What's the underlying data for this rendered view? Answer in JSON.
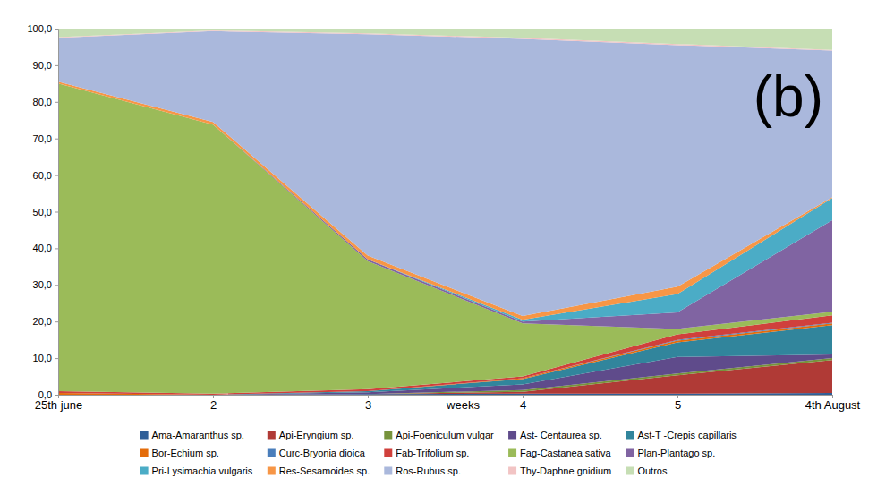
{
  "chart_data": {
    "type": "area",
    "stacked": true,
    "title": "(b)",
    "xlabel": "weeks",
    "legend": "bottom",
    "categories": [
      "25th june",
      "2",
      "3",
      "4",
      "5",
      "4th August"
    ],
    "ylim": [
      0,
      100
    ],
    "yticks": [
      {
        "value": 0,
        "label": "0,0"
      },
      {
        "value": 10,
        "label": "10,0"
      },
      {
        "value": 20,
        "label": "20,0"
      },
      {
        "value": 30,
        "label": "30,0"
      },
      {
        "value": 40,
        "label": "40,0"
      },
      {
        "value": 50,
        "label": "50,0"
      },
      {
        "value": 60,
        "label": "60,0"
      },
      {
        "value": 70,
        "label": "70,0"
      },
      {
        "value": 80,
        "label": "80,0"
      },
      {
        "value": 90,
        "label": "90,0"
      },
      {
        "value": 100,
        "label": "100,0"
      }
    ],
    "series": [
      {
        "name": "Ama-Amaranthus sp.",
        "color": "#2f5f98",
        "values": [
          0,
          0,
          0.2,
          0.3,
          0.3,
          0.5
        ]
      },
      {
        "name": "Api-Eryngium sp.",
        "color": "#b03a36",
        "values": [
          0,
          0,
          0,
          0.5,
          5,
          9
        ]
      },
      {
        "name": "Api-Foeniculum vulgar",
        "color": "#77933c",
        "values": [
          0,
          0,
          0,
          0.5,
          0.5,
          0.5
        ]
      },
      {
        "name": "Ast- Centaurea sp.",
        "color": "#5f4b8b",
        "values": [
          0,
          0,
          0.5,
          1.5,
          4.5,
          1
        ]
      },
      {
        "name": "Ast-T -Crepis capillaris",
        "color": "#31859c",
        "values": [
          0,
          0,
          0.3,
          1.5,
          4,
          8
        ]
      },
      {
        "name": "Bor-Echium sp.",
        "color": "#e46c0a",
        "values": [
          0.5,
          0,
          0,
          0.2,
          0.5,
          0.5
        ]
      },
      {
        "name": "Curc-Bryonia dioica",
        "color": "#4a7ebb",
        "values": [
          0,
          0,
          0,
          0,
          0.2,
          0.2
        ]
      },
      {
        "name": "Fab-Trifolium sp.",
        "color": "#d0403c",
        "values": [
          0.5,
          0.3,
          0.5,
          0.5,
          1.5,
          2
        ]
      },
      {
        "name": "Fag-Castanea sativa",
        "color": "#9bbb59",
        "values": [
          84,
          73.5,
          35,
          14.5,
          1.5,
          1
        ]
      },
      {
        "name": "Plan-Plantago sp.",
        "color": "#8064a2",
        "values": [
          0,
          0,
          0.5,
          0.5,
          4.5,
          25
        ]
      },
      {
        "name": "Pri-Lysimachia vulgaris",
        "color": "#4bacc6",
        "values": [
          0,
          0,
          0,
          0.5,
          5,
          6
        ]
      },
      {
        "name": "Res-Sesamoides sp.",
        "color": "#f79646",
        "values": [
          0.5,
          0.7,
          1,
          1,
          2,
          0.3
        ]
      },
      {
        "name": "Ros-Rubus sp.",
        "color": "#aab8dc",
        "values": [
          12,
          24.8,
          60.5,
          75.7,
          66,
          40
        ]
      },
      {
        "name": "Thy-Daphne gnidium",
        "color": "#f2c4c4",
        "values": [
          0.2,
          0.2,
          0.2,
          0.3,
          0.3,
          0.2
        ]
      },
      {
        "name": "Outros",
        "color": "#c6deb4",
        "values": [
          2.3,
          0.5,
          1.3,
          2.5,
          4.2,
          5.8
        ]
      }
    ]
  }
}
